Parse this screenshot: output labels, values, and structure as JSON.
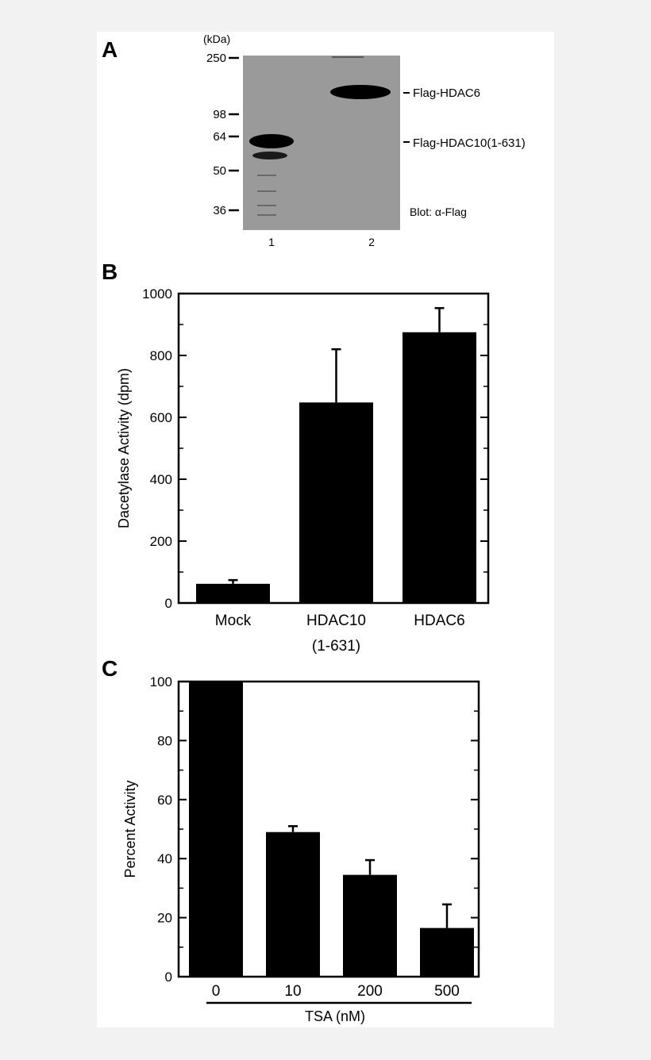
{
  "figure": {
    "panel_a": {
      "letter": "A",
      "unit_label": "(kDa)",
      "markers": [
        "250",
        "98",
        "64",
        "50",
        "36"
      ],
      "band_labels": [
        "Flag-HDAC6",
        "Flag-HDAC10(1-631)"
      ],
      "blot_label": "Blot: α-Flag",
      "lanes": [
        "1",
        "2"
      ],
      "colors": {
        "membrane": "#9a9a9a",
        "band": "#000000"
      }
    }
  },
  "chart_data": [
    {
      "panel": "B",
      "type": "bar",
      "ylabel": "Dacetylase Activity (dpm)",
      "xlabel": "",
      "categories": [
        {
          "line1": "Mock",
          "line2": ""
        },
        {
          "line1": "HDAC10",
          "line2": "(1-631)"
        },
        {
          "line1": "HDAC6",
          "line2": ""
        }
      ],
      "values": [
        62,
        648,
        875
      ],
      "errors": [
        12,
        172,
        78
      ],
      "ylim": [
        0,
        1000
      ],
      "yticks": [
        0,
        200,
        400,
        600,
        800,
        1000
      ],
      "grid": false,
      "bar_color": "#000000"
    },
    {
      "panel": "C",
      "type": "bar",
      "ylabel": "Percent Activity",
      "xlabel": "TSA (nM)",
      "categories": [
        {
          "line1": "0",
          "line2": ""
        },
        {
          "line1": "10",
          "line2": ""
        },
        {
          "line1": "200",
          "line2": ""
        },
        {
          "line1": "500",
          "line2": ""
        }
      ],
      "values": [
        100,
        49,
        34.5,
        16.5
      ],
      "errors": [
        0,
        2,
        5,
        8
      ],
      "ylim": [
        0,
        100
      ],
      "yticks": [
        0,
        20,
        40,
        60,
        80,
        100
      ],
      "grid": false,
      "bar_color": "#000000"
    }
  ]
}
